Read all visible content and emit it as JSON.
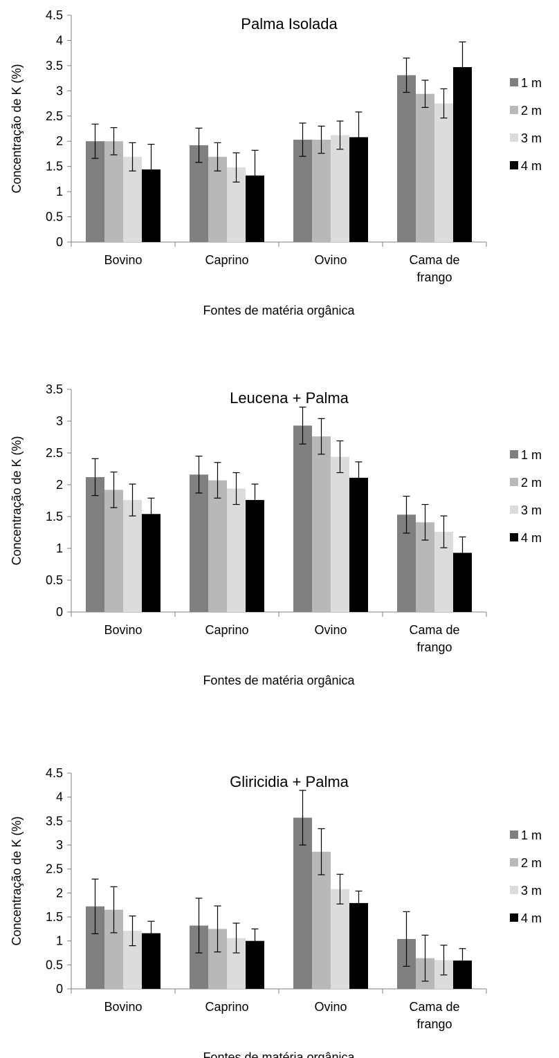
{
  "colors": {
    "series": [
      "#808080",
      "#b8b8b8",
      "#dcdcdc",
      "#000000"
    ],
    "axis": "#808080",
    "error_bar": "#000000"
  },
  "chart_data": [
    {
      "type": "bar",
      "title": "Palma Isolada",
      "xlabel": "Fontes de matéria orgânica",
      "ylabel": "Concentração de K (%)",
      "ylim": [
        0,
        4.5
      ],
      "yticks": [
        "0",
        "0.5",
        "1",
        "1.5",
        "2",
        "2.5",
        "3",
        "3.5",
        "4",
        "4.5"
      ],
      "grid": false,
      "legend_position": "right",
      "categories": [
        [
          "Bovino"
        ],
        [
          "Caprino"
        ],
        [
          "Ovino"
        ],
        [
          "Cama de",
          "frango"
        ]
      ],
      "series": [
        {
          "name": "1 m",
          "values": [
            2.0,
            1.92,
            2.03,
            3.31
          ],
          "errors": [
            0.34,
            0.34,
            0.33,
            0.34
          ]
        },
        {
          "name": "2 m",
          "values": [
            2.0,
            1.69,
            2.03,
            2.94
          ],
          "errors": [
            0.27,
            0.28,
            0.27,
            0.27
          ]
        },
        {
          "name": "3 m",
          "values": [
            1.69,
            1.48,
            2.12,
            2.75
          ],
          "errors": [
            0.28,
            0.29,
            0.28,
            0.29
          ]
        },
        {
          "name": "4 m",
          "values": [
            1.44,
            1.32,
            2.08,
            3.47
          ],
          "errors": [
            0.5,
            0.5,
            0.5,
            0.5
          ]
        }
      ]
    },
    {
      "type": "bar",
      "title": "Leucena + Palma",
      "xlabel": "Fontes de matéria orgânica",
      "ylabel": "Concentração de K (%)",
      "ylim": [
        0,
        3.5
      ],
      "yticks": [
        "0",
        "0.5",
        "1",
        "1.5",
        "2",
        "2.5",
        "3",
        "3.5"
      ],
      "grid": false,
      "legend_position": "right",
      "categories": [
        [
          "Bovino"
        ],
        [
          "Caprino"
        ],
        [
          "Ovino"
        ],
        [
          "Cama de",
          "frango"
        ]
      ],
      "series": [
        {
          "name": "1 m",
          "values": [
            2.12,
            2.16,
            2.93,
            1.53
          ],
          "errors": [
            0.29,
            0.29,
            0.29,
            0.29
          ]
        },
        {
          "name": "2 m",
          "values": [
            1.92,
            2.07,
            2.76,
            1.41
          ],
          "errors": [
            0.28,
            0.28,
            0.28,
            0.28
          ]
        },
        {
          "name": "3 m",
          "values": [
            1.76,
            1.94,
            2.44,
            1.26
          ],
          "errors": [
            0.25,
            0.25,
            0.25,
            0.25
          ]
        },
        {
          "name": "4 m",
          "values": [
            1.54,
            1.76,
            2.11,
            0.93
          ],
          "errors": [
            0.25,
            0.25,
            0.25,
            0.25
          ]
        }
      ]
    },
    {
      "type": "bar",
      "title": "Gliricidia + Palma",
      "xlabel": "Fontes de matéria orgânica",
      "ylabel": "Concentração de K (%)",
      "ylim": [
        0,
        4.5
      ],
      "yticks": [
        "0",
        "0.5",
        "1",
        "1.5",
        "2",
        "2.5",
        "3",
        "3.5",
        "4",
        "4.5"
      ],
      "grid": false,
      "legend_position": "right",
      "categories": [
        [
          "Bovino"
        ],
        [
          "Caprino"
        ],
        [
          "Ovino"
        ],
        [
          "Cama de",
          "frango"
        ]
      ],
      "series": [
        {
          "name": "1 m",
          "values": [
            1.72,
            1.32,
            3.57,
            1.04
          ],
          "errors": [
            0.57,
            0.57,
            0.57,
            0.57
          ]
        },
        {
          "name": "2 m",
          "values": [
            1.65,
            1.25,
            2.86,
            0.64
          ],
          "errors": [
            0.48,
            0.48,
            0.48,
            0.48
          ]
        },
        {
          "name": "3 m",
          "values": [
            1.21,
            1.06,
            2.08,
            0.6
          ],
          "errors": [
            0.31,
            0.31,
            0.31,
            0.31
          ]
        },
        {
          "name": "4 m",
          "values": [
            1.16,
            1.0,
            1.79,
            0.59
          ],
          "errors": [
            0.25,
            0.25,
            0.25,
            0.25
          ]
        }
      ]
    }
  ]
}
